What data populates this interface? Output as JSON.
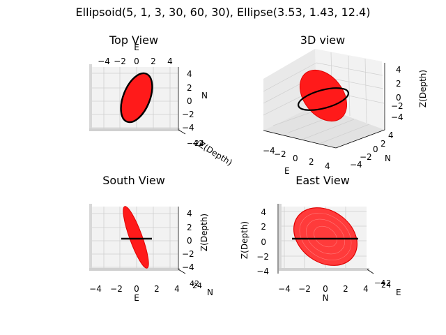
{
  "figure": {
    "suptitle": "Ellipsoid(5, 1, 3, 30, 60, 30), Ellipse(3.53, 1.43, 12.4)"
  },
  "colors": {
    "ellipsoid": "#ff0000",
    "ellipse": "#000000",
    "pane": "#f2f2f2",
    "grid": "#cfcfcf"
  },
  "chart_data": [
    {
      "type": "scatter",
      "subtype": "3d-projection",
      "title": "Top View",
      "xlabel": "E",
      "ylabel": "N",
      "zlabel": "Z(Depth)",
      "xticks": [
        "−4",
        "−2",
        "0",
        "2",
        "4"
      ],
      "yticks": [
        "4",
        "2",
        "0",
        "−2",
        "−4"
      ],
      "xlim": [
        -5,
        5
      ],
      "ylim": [
        -5,
        5
      ],
      "ellipsoid": {
        "a": 5,
        "b": 1,
        "c": 3,
        "angles": [
          30,
          60,
          30
        ]
      },
      "ellipse": {
        "semi_major": 3.53,
        "semi_minor": 1.43,
        "angle": 12.4
      }
    },
    {
      "type": "scatter",
      "subtype": "3d",
      "title": "3D view",
      "xlabel": "E",
      "ylabel": "N",
      "zlabel": "Z(Depth)",
      "xticks": [
        "−4",
        "−2",
        "0",
        "2",
        "4"
      ],
      "yticks": [
        "4",
        "2",
        "0",
        "−2",
        "−4"
      ],
      "zticks": [
        "4",
        "2",
        "0",
        "−2",
        "−4"
      ]
    },
    {
      "type": "scatter",
      "subtype": "3d-projection",
      "title": "South View",
      "xlabel": "E",
      "ylabel": "N",
      "zlabel": "Z(Depth)",
      "xticks": [
        "−4",
        "−2",
        "0",
        "2",
        "4"
      ],
      "zticks": [
        "4",
        "2",
        "0",
        "−2",
        "−4"
      ]
    },
    {
      "type": "scatter",
      "subtype": "3d-projection",
      "title": "East View",
      "xlabel": "N",
      "ylabel": "Z(Depth)",
      "zlabel": "E",
      "xticks": [
        "−4",
        "−2",
        "0",
        "2",
        "4"
      ],
      "yticks": [
        "4",
        "2",
        "0",
        "−2",
        "−4"
      ]
    }
  ]
}
